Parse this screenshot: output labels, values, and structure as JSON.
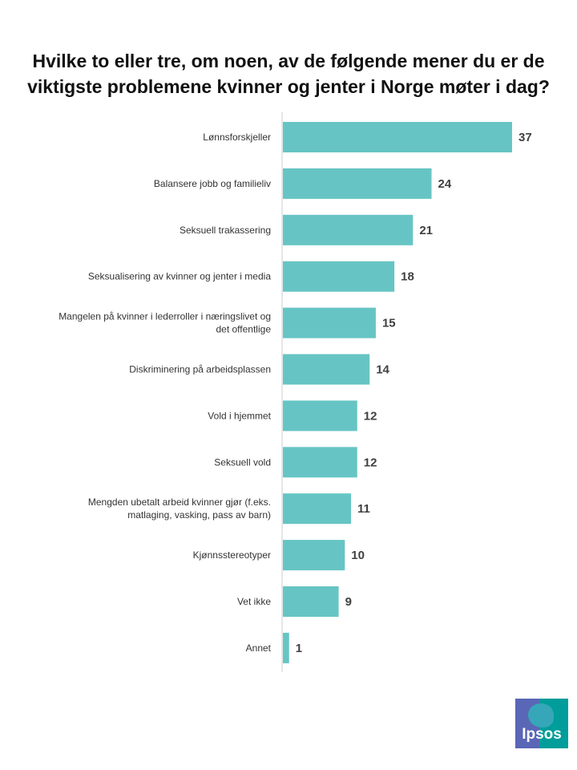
{
  "chart_data": {
    "type": "bar",
    "orientation": "horizontal",
    "title": "Hvilke to eller tre, om noen, av de følgende mener du er de viktigste problemene kvinner og jenter i Norge møter i dag?",
    "categories": [
      "Lønnsforskjeller",
      "Balansere jobb og familieliv",
      "Seksuell trakassering",
      "Seksualisering av kvinner og jenter i media",
      "Mangelen på kvinner i lederroller i næringslivet og det offentlige",
      "Diskriminering på arbeidsplassen",
      "Vold i hjemmet",
      "Seksuell vold",
      "Mengden ubetalt arbeid kvinner gjør (f.eks. matlaging, vasking, pass av barn)",
      "Kjønnsstereotyper",
      "Vet ikke",
      "Annet"
    ],
    "category_lines": [
      [
        "Lønnsforskjeller"
      ],
      [
        "Balansere jobb og familieliv"
      ],
      [
        "Seksuell trakassering"
      ],
      [
        "Seksualisering av kvinner og jenter i media"
      ],
      [
        "Mangelen på kvinner i lederroller i næringslivet og",
        "det offentlige"
      ],
      [
        "Diskriminering på arbeidsplassen"
      ],
      [
        "Vold i hjemmet"
      ],
      [
        "Seksuell vold"
      ],
      [
        "Mengden ubetalt arbeid kvinner gjør (f.eks.",
        "matlaging, vasking, pass av barn)"
      ],
      [
        "Kjønnsstereotyper"
      ],
      [
        "Vet ikke"
      ],
      [
        "Annet"
      ]
    ],
    "values": [
      37,
      24,
      21,
      18,
      15,
      14,
      12,
      12,
      11,
      10,
      9,
      1
    ],
    "xlim": [
      0,
      37
    ],
    "bar_color": "#66c5c4",
    "axis_color": "#cccccc",
    "grid": false,
    "legend": "none"
  },
  "logo": {
    "text": "Ipsos",
    "colors": {
      "blue": "#5a66b6",
      "teal": "#009d9a"
    }
  }
}
